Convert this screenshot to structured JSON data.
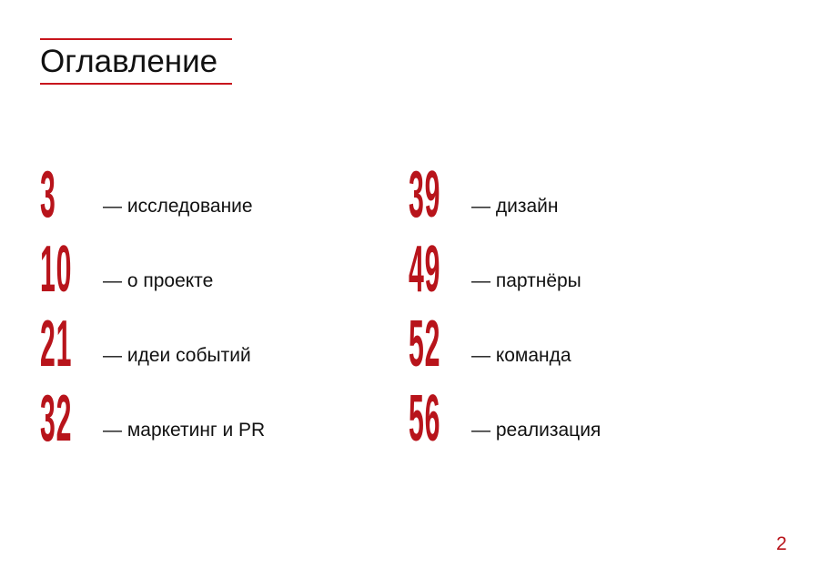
{
  "title": "Оглавление",
  "accent_color": "#b8141b",
  "toc": [
    {
      "page": "3",
      "label": "— исследование"
    },
    {
      "page": "10",
      "label": "— о проекте"
    },
    {
      "page": "21",
      "label": "— идеи событий"
    },
    {
      "page": "32",
      "label": "— маркетинг и PR"
    },
    {
      "page": "39",
      "label": "— дизайн"
    },
    {
      "page": "49",
      "label": "— партнёры"
    },
    {
      "page": "52",
      "label": "— команда"
    },
    {
      "page": "56",
      "label": "— реализация"
    }
  ],
  "page_number": "2"
}
